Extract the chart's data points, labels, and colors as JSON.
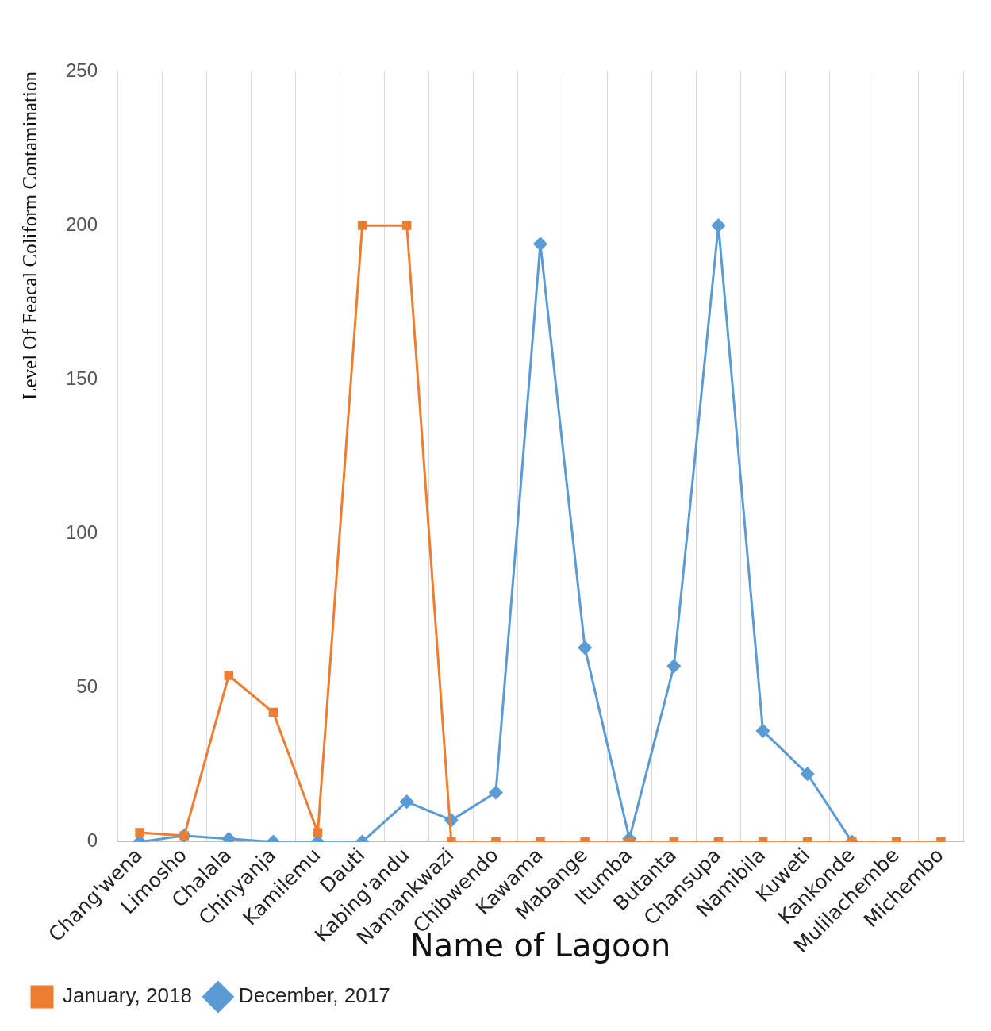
{
  "chart_data": {
    "type": "line",
    "xlabel": "Name of Lagoon",
    "ylabel": "Level Of Feacal Coliform Contamination",
    "categories": [
      "Chang'wena",
      "Limosho",
      "Chalala",
      "Chinyanja",
      "Kamilemu",
      "Dauti",
      "Kabing'andu",
      "Namankwazi",
      "Chibwendo",
      "Kawama",
      "Mabange",
      "Itumba",
      "Butanta",
      "Chansupa",
      "Namibila",
      "Kuweti",
      "Kankonde",
      "Mulilachembe",
      "Michembo"
    ],
    "series": [
      {
        "name": "December, 2017",
        "color": "#5b9bd5",
        "marker": "diamond",
        "values": [
          0,
          2,
          1,
          0,
          0,
          0,
          13,
          7,
          16,
          194,
          63,
          1,
          57,
          200,
          36,
          22,
          0,
          null,
          null
        ]
      },
      {
        "name": "January, 2018",
        "color": "#ed7d31",
        "marker": "square",
        "values": [
          3,
          2,
          54,
          42,
          3,
          200,
          200,
          0,
          0,
          0,
          0,
          0,
          0,
          0,
          0,
          0,
          0,
          0,
          0
        ]
      }
    ],
    "ylim": [
      0,
      250
    ],
    "yticks": [
      0,
      50,
      100,
      150,
      200,
      250
    ],
    "grid": "x",
    "legend": "bottom left",
    "line_style": "solid"
  }
}
